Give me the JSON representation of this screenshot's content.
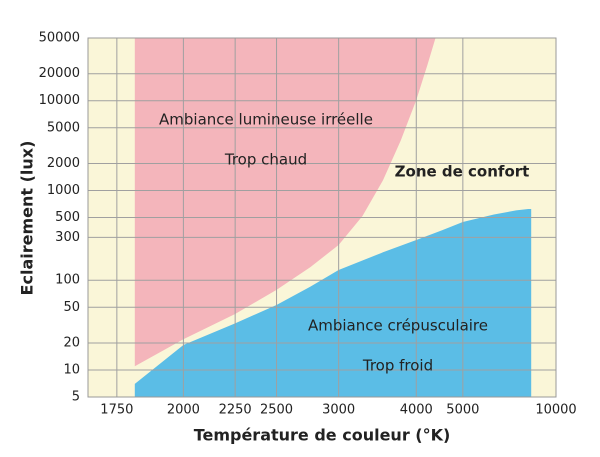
{
  "chart_data": {
    "type": "area",
    "xlabel": "Température de couleur (°K)",
    "ylabel": "Eclairement (lux)",
    "xscale": "reciprocal",
    "yscale": "log",
    "xlim": [
      1660,
      10000
    ],
    "ylim": [
      5,
      50000
    ],
    "xticks": [
      1750,
      2000,
      2250,
      2500,
      3000,
      4000,
      5000,
      10000
    ],
    "yticks": [
      5,
      10,
      20,
      50,
      100,
      300,
      500,
      1000,
      2000,
      5000,
      10000,
      20000,
      50000
    ],
    "grid": true,
    "background": "#faf6d8",
    "annotations": [
      "Ambiance lumineuse irréelle",
      "Trop chaud",
      "Zone de confort",
      "Ambiance crépusculaire",
      "Trop froid"
    ],
    "series": [
      {
        "color": "#f4b5bb",
        "fill": "above",
        "x": [
          1811,
          2000,
          2250,
          2500,
          2750,
          3000,
          3250,
          3500,
          3750,
          4000,
          4200,
          4360
        ],
        "values": [
          11,
          22,
          42,
          78,
          140,
          247,
          520,
          1300,
          3600,
          10200,
          25000,
          50000
        ]
      },
      {
        "color": "#5bbde6",
        "fill": "below",
        "x": [
          1811,
          2000,
          2250,
          2500,
          2750,
          3000,
          3500,
          4000,
          4500,
          5000,
          6000,
          7000,
          7700,
          7900
        ],
        "values": [
          7,
          19,
          33,
          53,
          85,
          130,
          205,
          281,
          360,
          446,
          540,
          600,
          622,
          622
        ]
      }
    ]
  }
}
